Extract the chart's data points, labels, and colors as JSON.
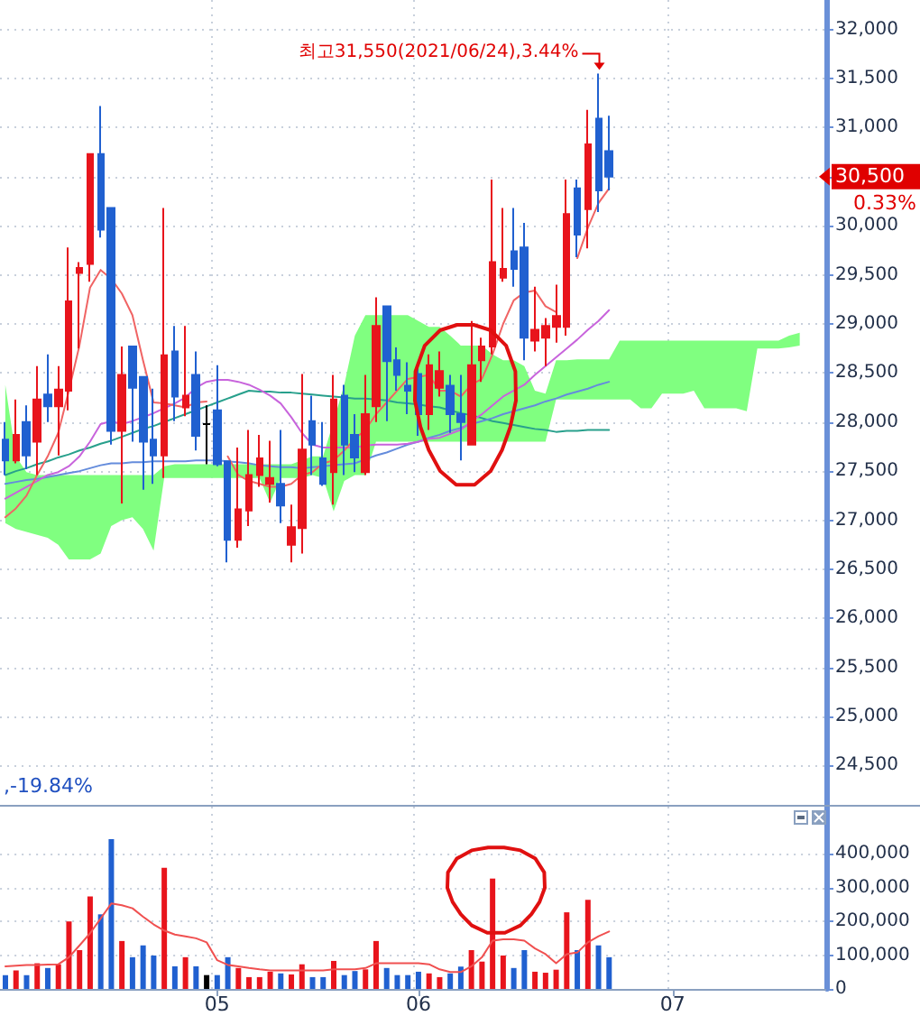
{
  "chart_data": [
    {
      "type": "candlestick",
      "categories": [
        null,
        null,
        null,
        null,
        null,
        null,
        null,
        null,
        null,
        null,
        null,
        null,
        null,
        null,
        null,
        null,
        null,
        null,
        null,
        null,
        "05",
        null,
        null,
        null,
        null,
        null,
        null,
        null,
        null,
        null,
        null,
        null,
        null,
        null,
        null,
        null,
        null,
        null,
        null,
        "06",
        null,
        null,
        null,
        null,
        null,
        null,
        null,
        null,
        null,
        null,
        null,
        null,
        null,
        null,
        null,
        null,
        null,
        null,
        null,
        null,
        null,
        null,
        null,
        "07",
        null,
        null,
        null,
        null,
        null,
        null,
        null,
        null,
        null,
        null,
        null,
        null,
        null,
        null
      ],
      "ohlc": [
        [
          27820,
          28000,
          27460,
          27610
        ],
        [
          27610,
          28230,
          27580,
          27870
        ],
        [
          28000,
          28170,
          27520,
          27660
        ],
        [
          27800,
          28570,
          27460,
          28230
        ],
        [
          28280,
          28690,
          28000,
          28160
        ],
        [
          28160,
          28570,
          27660,
          28330
        ],
        [
          28320,
          29780,
          28120,
          29230
        ],
        [
          29520,
          29630,
          28750,
          29570
        ],
        [
          29610,
          30730,
          29430,
          30730
        ],
        [
          30730,
          31220,
          29880,
          29960
        ],
        [
          30180,
          30180,
          27770,
          27910
        ],
        [
          27910,
          28770,
          27170,
          28480
        ],
        [
          28770,
          28770,
          27800,
          28350
        ],
        [
          28460,
          28460,
          27310,
          27800
        ],
        [
          27820,
          28340,
          27370,
          27660
        ],
        [
          27660,
          30180,
          27430,
          28680
        ],
        [
          28720,
          28980,
          28010,
          28260
        ],
        [
          28150,
          28980,
          28060,
          28270
        ],
        [
          28480,
          28720,
          27710,
          27860
        ],
        [
          27980,
          28170,
          27570,
          27980
        ],
        [
          28120,
          28580,
          27550,
          27570
        ],
        [
          27600,
          27600,
          26570,
          26800
        ],
        [
          26800,
          27740,
          26720,
          27110
        ],
        [
          27100,
          27920,
          26940,
          27460
        ],
        [
          27460,
          27870,
          27340,
          27630
        ],
        [
          27370,
          27810,
          27180,
          27430
        ],
        [
          27370,
          27920,
          26970,
          27150
        ],
        [
          26750,
          27160,
          26570,
          26930
        ],
        [
          26920,
          28490,
          26660,
          27720
        ],
        [
          28010,
          28270,
          27460,
          27770
        ],
        [
          27630,
          28000,
          27350,
          27370
        ],
        [
          27490,
          28480,
          27160,
          28230
        ],
        [
          28270,
          28380,
          27460,
          27770
        ],
        [
          27870,
          28080,
          27490,
          27640
        ],
        [
          27490,
          28480,
          27460,
          28080
        ],
        [
          28160,
          29270,
          28000,
          28980
        ],
        [
          29180,
          29180,
          28010,
          28620
        ],
        [
          28630,
          28760,
          28320,
          28480
        ],
        [
          28370,
          28610,
          28080,
          28320
        ],
        [
          28490,
          28570,
          27860,
          28080
        ],
        [
          28080,
          28690,
          27920,
          28580
        ],
        [
          28350,
          28720,
          28260,
          28520
        ],
        [
          28370,
          28480,
          27890,
          28080
        ],
        [
          28080,
          28480,
          27610,
          28000
        ],
        [
          27770,
          29030,
          27770,
          28580
        ],
        [
          28630,
          28860,
          28410,
          28770
        ],
        [
          28770,
          30470,
          28690,
          29630
        ],
        [
          29470,
          30180,
          29430,
          29560
        ],
        [
          29740,
          30180,
          29380,
          29560
        ],
        [
          29780,
          30030,
          28630,
          28860
        ],
        [
          28830,
          29380,
          28720,
          28940
        ],
        [
          28860,
          29060,
          28570,
          28980
        ],
        [
          28970,
          29400,
          28810,
          29080
        ],
        [
          28970,
          30470,
          28880,
          30120
        ],
        [
          30380,
          30470,
          29680,
          29910
        ],
        [
          30170,
          31180,
          29770,
          30830
        ],
        [
          31090,
          31550,
          30140,
          30360
        ],
        [
          30760,
          31120,
          30360,
          30500
        ],
        null,
        null,
        null,
        null,
        null,
        null,
        null,
        null,
        null,
        null,
        null,
        null,
        null,
        null,
        null,
        null,
        null,
        null,
        null,
        null
      ],
      "colors": [
        "#2060d0",
        "#e8141c",
        "#2060d0",
        "#e8141c",
        "#2060d0",
        "#e8141c",
        "#e8141c",
        "#e8141c",
        "#e8141c",
        "#2060d0",
        "#2060d0",
        "#e8141c",
        "#2060d0",
        "#2060d0",
        "#2060d0",
        "#e8141c",
        "#2060d0",
        "#e8141c",
        "#2060d0",
        "#000000",
        "#2060d0",
        "#2060d0",
        "#e8141c",
        "#e8141c",
        "#e8141c",
        "#e8141c",
        "#2060d0",
        "#e8141c",
        "#e8141c",
        "#2060d0",
        "#2060d0",
        "#e8141c",
        "#2060d0",
        "#2060d0",
        "#e8141c",
        "#e8141c",
        "#2060d0",
        "#2060d0",
        "#2060d0",
        "#2060d0",
        "#e8141c",
        "#e8141c",
        "#2060d0",
        "#2060d0",
        "#e8141c",
        "#e8141c",
        "#e8141c",
        "#e8141c",
        "#2060d0",
        "#2060d0",
        "#e8141c",
        "#e8141c",
        "#e8141c",
        "#e8141c",
        "#2060d0",
        "#e8141c",
        "#2060d0",
        "#2060d0",
        null,
        null,
        null,
        null,
        null,
        null,
        null,
        null,
        null,
        null,
        null,
        null,
        null,
        null,
        null,
        null,
        null,
        null,
        null,
        null
      ],
      "series": [
        {
          "type": "area",
          "color": "#80ff80",
          "values": [
            null,
            null,
            null,
            null,
            null,
            null,
            null,
            null,
            null,
            null,
            null,
            null,
            null,
            null,
            null,
            null,
            null,
            null,
            null,
            null,
            null,
            null,
            null,
            null,
            null,
            null,
            null,
            null,
            null,
            null,
            null,
            null,
            null,
            null,
            null,
            null,
            null,
            null,
            null,
            null,
            null,
            null,
            null,
            null,
            null,
            null,
            null,
            null,
            null,
            null,
            null,
            null,
            null,
            null,
            null,
            null,
            null,
            null,
            null,
            null,
            null,
            null,
            null,
            null,
            null,
            null,
            null,
            null,
            null,
            null,
            null,
            null,
            null,
            null,
            null,
            null,
            null,
            null
          ],
          "upper": [
            28380,
            27650,
            27490,
            27460,
            27460,
            27460,
            27460,
            27460,
            27460,
            27460,
            27460,
            27460,
            27460,
            27460,
            27460,
            27550,
            27570,
            27570,
            27570,
            27570,
            27570,
            27570,
            27570,
            27570,
            27570,
            27570,
            27570,
            27570,
            27610,
            27650,
            27650,
            28010,
            28380,
            28880,
            29090,
            29090,
            29090,
            29090,
            29090,
            29030,
            28970,
            28970,
            28880,
            28780,
            28780,
            28780,
            28690,
            28630,
            28630,
            28570,
            28320,
            28290,
            28630,
            28630,
            28640,
            28640,
            28640,
            28640,
            28830,
            28830,
            28830,
            28830,
            28830,
            28830,
            28830,
            28830,
            28830,
            28830,
            28830,
            28830,
            28830,
            28830,
            28830,
            28830,
            28880,
            28910,
            null,
            null
          ],
          "lower": [
            26970,
            26910,
            26880,
            26850,
            26820,
            26750,
            26600,
            26600,
            26600,
            26660,
            26940,
            27000,
            27030,
            26910,
            26690,
            27430,
            27430,
            27430,
            27430,
            27430,
            27430,
            27430,
            27430,
            27430,
            27430,
            27180,
            27430,
            27430,
            27430,
            27460,
            27430,
            27090,
            27400,
            27460,
            27460,
            27800,
            27800,
            27800,
            27800,
            27800,
            27800,
            27800,
            27800,
            27800,
            27800,
            27800,
            27800,
            27800,
            27800,
            27800,
            27800,
            27800,
            28230,
            28230,
            28230,
            28230,
            28230,
            28230,
            28230,
            28230,
            28140,
            28140,
            28290,
            28290,
            28290,
            28320,
            28140,
            28140,
            28140,
            28140,
            28110,
            28750,
            28750,
            28750,
            28760,
            28780,
            null,
            null
          ]
        },
        {
          "type": "line",
          "color": "#28a08c",
          "values": [
            27460,
            27500,
            27530,
            27570,
            27600,
            27640,
            27670,
            27710,
            27740,
            27780,
            27810,
            27850,
            27890,
            27930,
            27960,
            28000,
            28040,
            28080,
            28120,
            28160,
            28200,
            28240,
            28280,
            28320,
            28310,
            28310,
            28300,
            28300,
            28290,
            28280,
            28270,
            28260,
            28250,
            28240,
            28240,
            28230,
            28220,
            28200,
            28190,
            28180,
            28160,
            28150,
            28120,
            28090,
            28070,
            28040,
            28010,
            27990,
            27970,
            27950,
            27930,
            27920,
            27900,
            27910,
            27910,
            27920,
            27920,
            27920,
            null,
            null,
            null,
            null,
            null,
            null,
            null,
            null,
            null,
            null,
            null,
            null,
            null,
            null,
            null,
            null,
            null,
            null,
            null,
            null
          ]
        },
        {
          "type": "line",
          "color": "#648cdc",
          "values": [
            27370,
            27390,
            27410,
            27420,
            27440,
            27460,
            27480,
            27500,
            27530,
            27560,
            27580,
            27580,
            27590,
            27590,
            27600,
            27600,
            27600,
            27600,
            27610,
            27610,
            27610,
            27600,
            27590,
            27580,
            27560,
            27550,
            27540,
            27540,
            27530,
            27540,
            27550,
            27560,
            27570,
            27580,
            27620,
            27660,
            27690,
            27730,
            27770,
            27800,
            27840,
            27870,
            27910,
            27940,
            27980,
            28010,
            28040,
            28080,
            28110,
            28140,
            28170,
            28210,
            28240,
            28280,
            28310,
            28340,
            28380,
            28410,
            null,
            null,
            null,
            null,
            null,
            null,
            null,
            null,
            null,
            null,
            null,
            null,
            null,
            null,
            null,
            null,
            null,
            null,
            null,
            null
          ]
        },
        {
          "type": "line",
          "color": "#c864dc",
          "values": [
            27220,
            27280,
            27340,
            27400,
            27460,
            27490,
            27550,
            27650,
            27800,
            27980,
            28010,
            27980,
            28010,
            28050,
            28090,
            28140,
            28190,
            28250,
            28350,
            28410,
            28430,
            28430,
            28410,
            28380,
            28330,
            28270,
            28190,
            28050,
            27890,
            27770,
            27740,
            27740,
            27740,
            27740,
            27760,
            27770,
            27770,
            27770,
            27780,
            27800,
            27830,
            27840,
            27880,
            27920,
            28010,
            28080,
            28170,
            28260,
            28320,
            28380,
            28480,
            28570,
            28660,
            28750,
            28840,
            28940,
            29030,
            29140,
            null,
            null,
            null,
            null,
            null,
            null,
            null,
            null,
            null,
            null,
            null,
            null,
            null,
            null,
            null,
            null,
            null,
            null,
            null,
            null
          ]
        },
        {
          "type": "line",
          "color": "#f06464",
          "values": [
            27030,
            27120,
            27250,
            27460,
            27650,
            27890,
            28320,
            28780,
            29370,
            29550,
            29460,
            29310,
            29090,
            28630,
            28200,
            28190,
            28170,
            28150,
            28200,
            28210,
            null,
            27650,
            27460,
            27400,
            27370,
            27340,
            27340,
            27370,
            27460,
            27490,
            27580,
            27610,
            27710,
            27830,
            27920,
            28080,
            28200,
            28320,
            28440,
            28460,
            28480,
            28320,
            28320,
            28260,
            28380,
            28440,
            28690,
            29000,
            29240,
            29320,
            29340,
            29180,
            29120,
            null,
            29670,
            29980,
            30230,
            30380,
            null,
            null,
            null,
            null,
            null,
            null,
            null,
            null,
            null,
            null,
            null,
            null,
            null,
            null,
            null,
            null,
            null,
            null,
            null,
            null
          ]
        }
      ],
      "ylim": [
        24100,
        32300
      ],
      "yticks": [
        {
          "value": 24500,
          "label": "24,500"
        },
        {
          "value": 25000,
          "label": "25,000"
        },
        {
          "value": 25500,
          "label": "25,500"
        },
        {
          "value": 26000,
          "label": "26,000"
        },
        {
          "value": 26500,
          "label": "26,500"
        },
        {
          "value": 27000,
          "label": "27,000"
        },
        {
          "value": 27500,
          "label": "27,500"
        },
        {
          "value": 28000,
          "label": "28,000"
        },
        {
          "value": 28500,
          "label": "28,500"
        },
        {
          "value": 29000,
          "label": "29,000"
        },
        {
          "value": 29500,
          "label": "29,500"
        },
        {
          "value": 30000,
          "label": "30,000"
        },
        {
          "value": 30500,
          "label": null
        },
        {
          "value": 31000,
          "label": "31,000"
        },
        {
          "value": 31500,
          "label": "31,500"
        },
        {
          "value": 32000,
          "label": "32,000"
        }
      ],
      "grid": true,
      "tick_labels": "y",
      "annotations": [
        "최고31,550(2021/06/24),3.44%",
        "30,500",
        ",-19.84%",
        "0.33%"
      ]
    },
    {
      "type": "bar",
      "categories": [
        null,
        null,
        null,
        null,
        null,
        null,
        null,
        null,
        null,
        null,
        null,
        null,
        null,
        null,
        null,
        null,
        null,
        null,
        null,
        null,
        "05",
        null,
        null,
        null,
        null,
        null,
        null,
        null,
        null,
        null,
        null,
        null,
        null,
        null,
        null,
        null,
        null,
        null,
        null,
        "06",
        null,
        null,
        null,
        null,
        null,
        null,
        null,
        null,
        null,
        null,
        null,
        null,
        null,
        null,
        null,
        null,
        null,
        null,
        null,
        null,
        null,
        null,
        null,
        "07",
        null,
        null,
        null,
        null,
        null,
        null,
        null,
        null,
        null,
        null,
        null,
        null,
        null,
        null
      ],
      "series": [
        {
          "type": "bar",
          "values": [
            41000,
            55000,
            41000,
            76000,
            62000,
            73000,
            200000,
            115000,
            274000,
            221000,
            444000,
            142000,
            94000,
            129000,
            99000,
            359000,
            67000,
            94000,
            67000,
            41000,
            41000,
            94000,
            62000,
            35000,
            35000,
            51000,
            46000,
            43000,
            73000,
            35000,
            35000,
            83000,
            41000,
            53000,
            58000,
            142000,
            62000,
            41000,
            41000,
            51000,
            46000,
            35000,
            46000,
            66000,
            115000,
            81000,
            327000,
            99000,
            62000,
            115000,
            51000,
            48000,
            57000,
            227000,
            115000,
            264000,
            129000,
            94000,
            null,
            null,
            null,
            null,
            null,
            null,
            null,
            null,
            null,
            null,
            null,
            null,
            null,
            null,
            null,
            null,
            null,
            null,
            null,
            null
          ],
          "colors": [
            "#2060d0",
            "#e8141c",
            "#2060d0",
            "#e8141c",
            "#2060d0",
            "#e8141c",
            "#e8141c",
            "#e8141c",
            "#e8141c",
            "#2060d0",
            "#2060d0",
            "#e8141c",
            "#2060d0",
            "#2060d0",
            "#2060d0",
            "#e8141c",
            "#2060d0",
            "#e8141c",
            "#2060d0",
            "#000000",
            "#2060d0",
            "#2060d0",
            "#e8141c",
            "#e8141c",
            "#e8141c",
            "#e8141c",
            "#2060d0",
            "#e8141c",
            "#e8141c",
            "#2060d0",
            "#2060d0",
            "#e8141c",
            "#2060d0",
            "#2060d0",
            "#e8141c",
            "#e8141c",
            "#2060d0",
            "#2060d0",
            "#2060d0",
            "#2060d0",
            "#e8141c",
            "#e8141c",
            "#2060d0",
            "#2060d0",
            "#e8141c",
            "#e8141c",
            "#e8141c",
            "#e8141c",
            "#2060d0",
            "#2060d0",
            "#e8141c",
            "#e8141c",
            "#e8141c",
            "#e8141c",
            "#2060d0",
            "#e8141c",
            "#2060d0",
            "#2060d0",
            null,
            null,
            null,
            null,
            null,
            null,
            null,
            null,
            null,
            null,
            null,
            null,
            null,
            null,
            null,
            null,
            null,
            null,
            null,
            null
          ]
        },
        {
          "type": "line",
          "color": "#f05050",
          "values": [
            67000,
            69000,
            71000,
            71000,
            72000,
            73000,
            94000,
            129000,
            165000,
            209000,
            253000,
            248000,
            239000,
            214000,
            191000,
            173000,
            161000,
            156000,
            150000,
            138000,
            85000,
            71000,
            67000,
            62000,
            58000,
            55000,
            55000,
            55000,
            55000,
            55000,
            55000,
            58000,
            58000,
            58000,
            62000,
            76000,
            76000,
            76000,
            76000,
            76000,
            73000,
            58000,
            50000,
            50000,
            67000,
            94000,
            143000,
            147000,
            147000,
            143000,
            120000,
            103000,
            76000,
            103000,
            108000,
            138000,
            156000,
            170000,
            null,
            null,
            null,
            null,
            null,
            null,
            null,
            null,
            null,
            null,
            null,
            null,
            null,
            null,
            null,
            null,
            null,
            null,
            null,
            null
          ]
        }
      ],
      "ylim": [
        0,
        540000
      ],
      "yticks": [
        0,
        {
          "value": 100000,
          "label": "100,000"
        },
        {
          "value": 200000,
          "label": "200,000"
        },
        {
          "value": 300000,
          "label": "300,000"
        },
        {
          "value": 400000,
          "label": "400,000"
        }
      ],
      "grid": true
    }
  ]
}
